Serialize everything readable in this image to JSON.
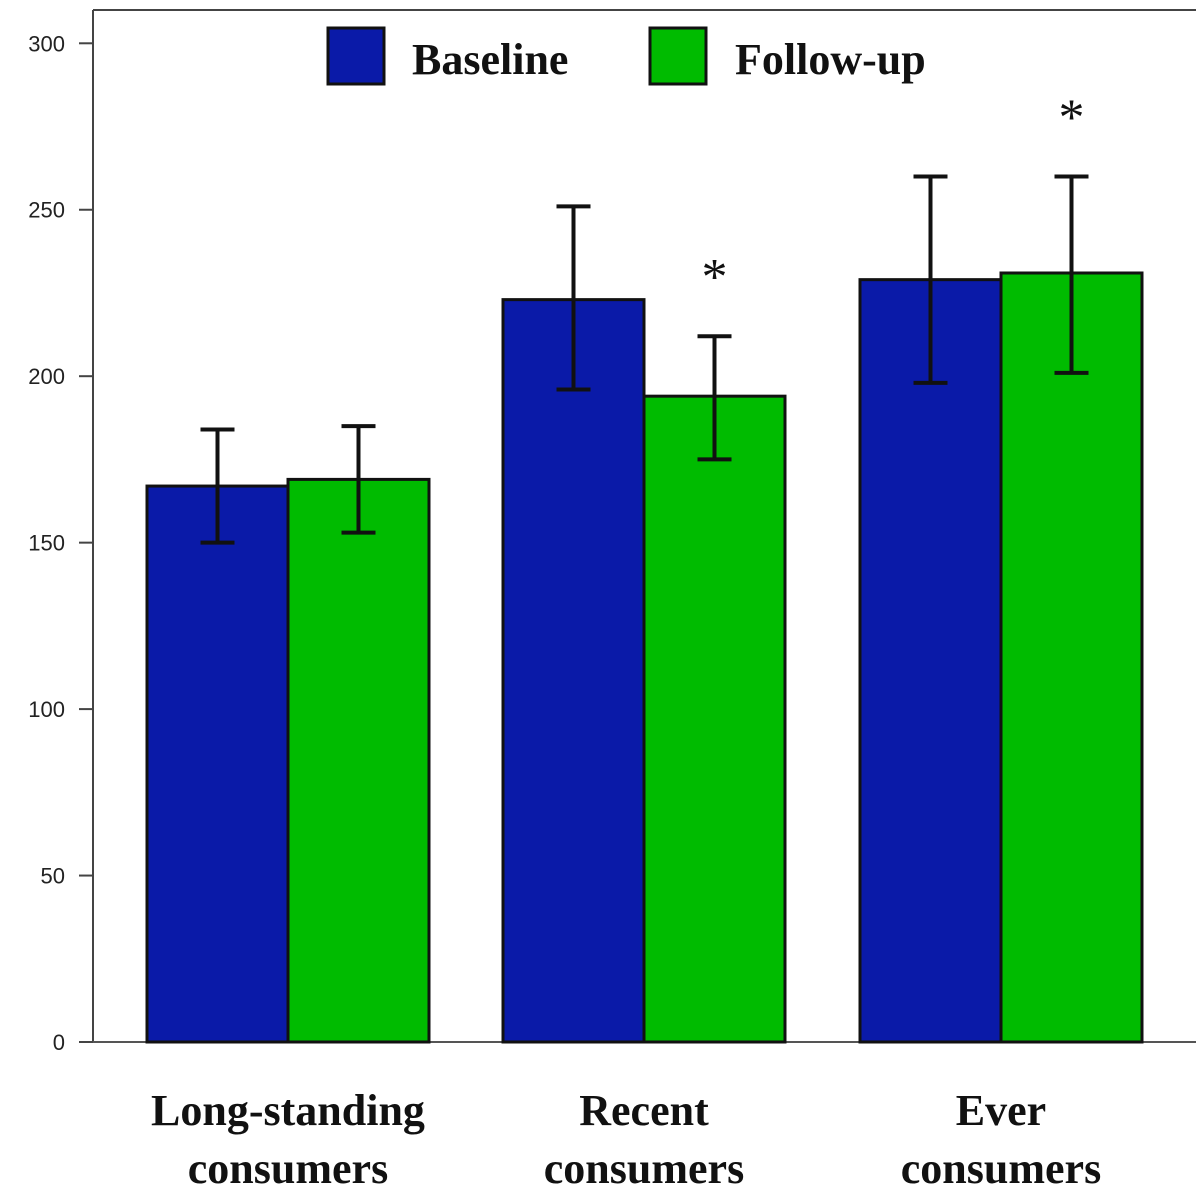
{
  "chart_data": {
    "type": "bar",
    "categories": [
      [
        "Long-standing",
        "consumers"
      ],
      [
        "Recent",
        "consumers"
      ],
      [
        "Ever",
        "consumers"
      ]
    ],
    "series": [
      {
        "name": "Baseline",
        "color": "#0a1aa8",
        "values": [
          167,
          223,
          229
        ],
        "err_low": [
          150,
          196,
          198
        ],
        "err_high": [
          184,
          251,
          260
        ]
      },
      {
        "name": "Follow-up",
        "color": "#00bb00",
        "values": [
          169,
          194,
          231
        ],
        "err_low": [
          153,
          175,
          201
        ],
        "err_high": [
          185,
          212,
          260
        ]
      }
    ],
    "significance": [
      {
        "category": 1,
        "series": 1,
        "mark": "*"
      },
      {
        "category": 2,
        "series": 1,
        "mark": "*"
      }
    ],
    "ylim": [
      0,
      310
    ],
    "yticks": [
      "0",
      "50",
      "100",
      "150",
      "200",
      "250",
      "300"
    ],
    "legend_position": "top-center",
    "grid": false,
    "title": "",
    "xlabel": "",
    "ylabel": ""
  }
}
